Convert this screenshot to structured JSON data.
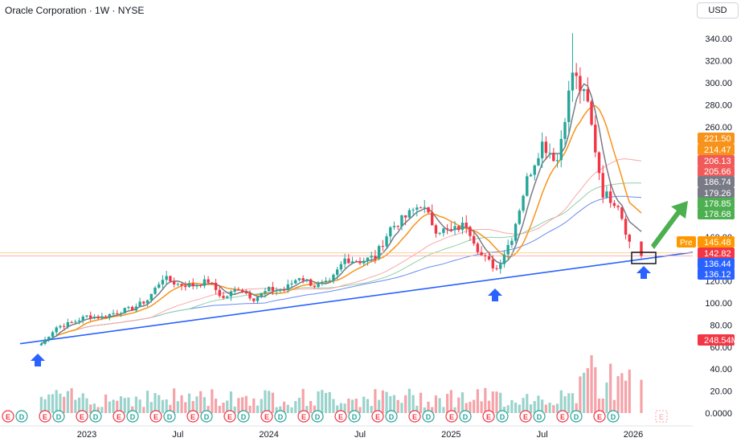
{
  "header": {
    "title": "Oracle Corporation · 1W · NYSE",
    "currency": "USD"
  },
  "price_axis_ticks": [
    "340.00",
    "320.00",
    "300.00",
    "280.00",
    "260.00",
    "160.00",
    "120.00",
    "100.00",
    "80.00",
    "60.00",
    "40.00",
    "20.00",
    "0.0000"
  ],
  "time_axis_ticks": [
    "2023",
    "Jul",
    "2024",
    "Jul",
    "2025",
    "Jul",
    "2026"
  ],
  "price_tags": [
    {
      "label": "221.50",
      "color": "#f7931a"
    },
    {
      "label": "214.47",
      "color": "#f7931a"
    },
    {
      "label": "206.13",
      "color": "#f05a5a"
    },
    {
      "label": "205.66",
      "color": "#f05a5a"
    },
    {
      "label": "186.74",
      "color": "#787b86"
    },
    {
      "label": "179.26",
      "color": "#787b86"
    },
    {
      "label": "178.85",
      "color": "#4caf50"
    },
    {
      "label": "178.68",
      "color": "#4caf50"
    },
    {
      "label": "145.48",
      "color": "#ff9800",
      "prefix": "Pre"
    },
    {
      "label": "142.82",
      "color": "#f23645"
    },
    {
      "label": "136.44",
      "color": "#2962ff"
    },
    {
      "label": "136.12",
      "color": "#2962ff"
    },
    {
      "label": "248.54M",
      "color": "#f23645"
    }
  ],
  "earnings_markers": [
    "E",
    "D",
    "E",
    "D",
    "E",
    "D",
    "E",
    "D",
    "E",
    "D",
    "E",
    "D",
    "E",
    "D",
    "E",
    "D",
    "E",
    "D",
    "E",
    "D",
    "E",
    "D",
    "E",
    "D",
    "E",
    "D",
    "E",
    "D",
    "E",
    "D",
    "E",
    "D",
    "E",
    "D"
  ],
  "future_earnings_marker": "E",
  "colors": {
    "up": "#26a69a",
    "down": "#f23645",
    "trendline": "#2962ff",
    "ma_short": "#787b86",
    "ma_mid": "#f7931a",
    "ma_long_red": "#f7a8a8",
    "ma_long_green": "#8fd1a8",
    "ma_long_blue": "#6a8cf0",
    "arrow_green": "#4caf50",
    "arrow_blue": "#2962ff"
  },
  "chart_data": {
    "type": "candlestick",
    "title": "Oracle Corporation · 1W · NYSE",
    "ylim": [
      0,
      350
    ],
    "anchor_closes": [
      [
        "2022-10",
        63
      ],
      [
        "2022-11",
        78
      ],
      [
        "2022-12",
        82
      ],
      [
        "2023-01",
        88
      ],
      [
        "2023-02",
        87
      ],
      [
        "2023-03",
        92
      ],
      [
        "2023-04",
        95
      ],
      [
        "2023-05",
        103
      ],
      [
        "2023-06",
        123
      ],
      [
        "2023-07",
        117
      ],
      [
        "2023-08",
        116
      ],
      [
        "2023-09",
        120
      ],
      [
        "2023-10",
        104
      ],
      [
        "2023-11",
        114
      ],
      [
        "2023-12",
        104
      ],
      [
        "2024-01",
        112
      ],
      [
        "2024-02",
        112
      ],
      [
        "2024-03",
        124
      ],
      [
        "2024-04",
        116
      ],
      [
        "2024-05",
        118
      ],
      [
        "2024-06",
        140
      ],
      [
        "2024-07",
        138
      ],
      [
        "2024-08",
        142
      ],
      [
        "2024-09",
        168
      ],
      [
        "2024-10",
        178
      ],
      [
        "2024-11",
        190
      ],
      [
        "2024-12",
        167
      ],
      [
        "2025-01",
        165
      ],
      [
        "2025-02",
        172
      ],
      [
        "2025-03",
        143
      ],
      [
        "2025-04",
        131
      ],
      [
        "2025-05",
        160
      ],
      [
        "2025-06",
        212
      ],
      [
        "2025-07",
        245
      ],
      [
        "2025-08",
        230
      ],
      [
        "2025-09",
        310
      ],
      [
        "2025-10",
        280
      ],
      [
        "2025-11",
        200
      ],
      [
        "2025-12",
        190
      ],
      [
        "2026-01",
        143
      ]
    ],
    "last_close": 142.82,
    "premarket": 145.48,
    "last_volume": "248.54M",
    "indicators": [
      "MA short (gray)",
      "MA mid (orange)",
      "MA long (red/green/blue)",
      "Trendline (blue)"
    ]
  }
}
